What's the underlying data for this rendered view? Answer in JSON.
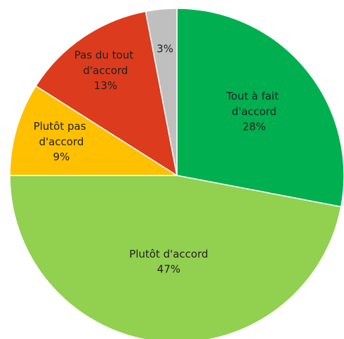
{
  "chart_data": {
    "type": "pie",
    "categories": [
      "Tout à fait d'accord",
      "Plutôt d'accord",
      "Plutôt pas d'accord",
      "Pas du tout d'accord",
      null
    ],
    "values": [
      28,
      47,
      9,
      13,
      3
    ],
    "value_labels": [
      "28%",
      "47%",
      "9%",
      "13%",
      "3%"
    ],
    "colors": [
      "#00b050",
      "#92d050",
      "#ffc000",
      "#dc3b1e",
      "#bfbfbf"
    ]
  }
}
